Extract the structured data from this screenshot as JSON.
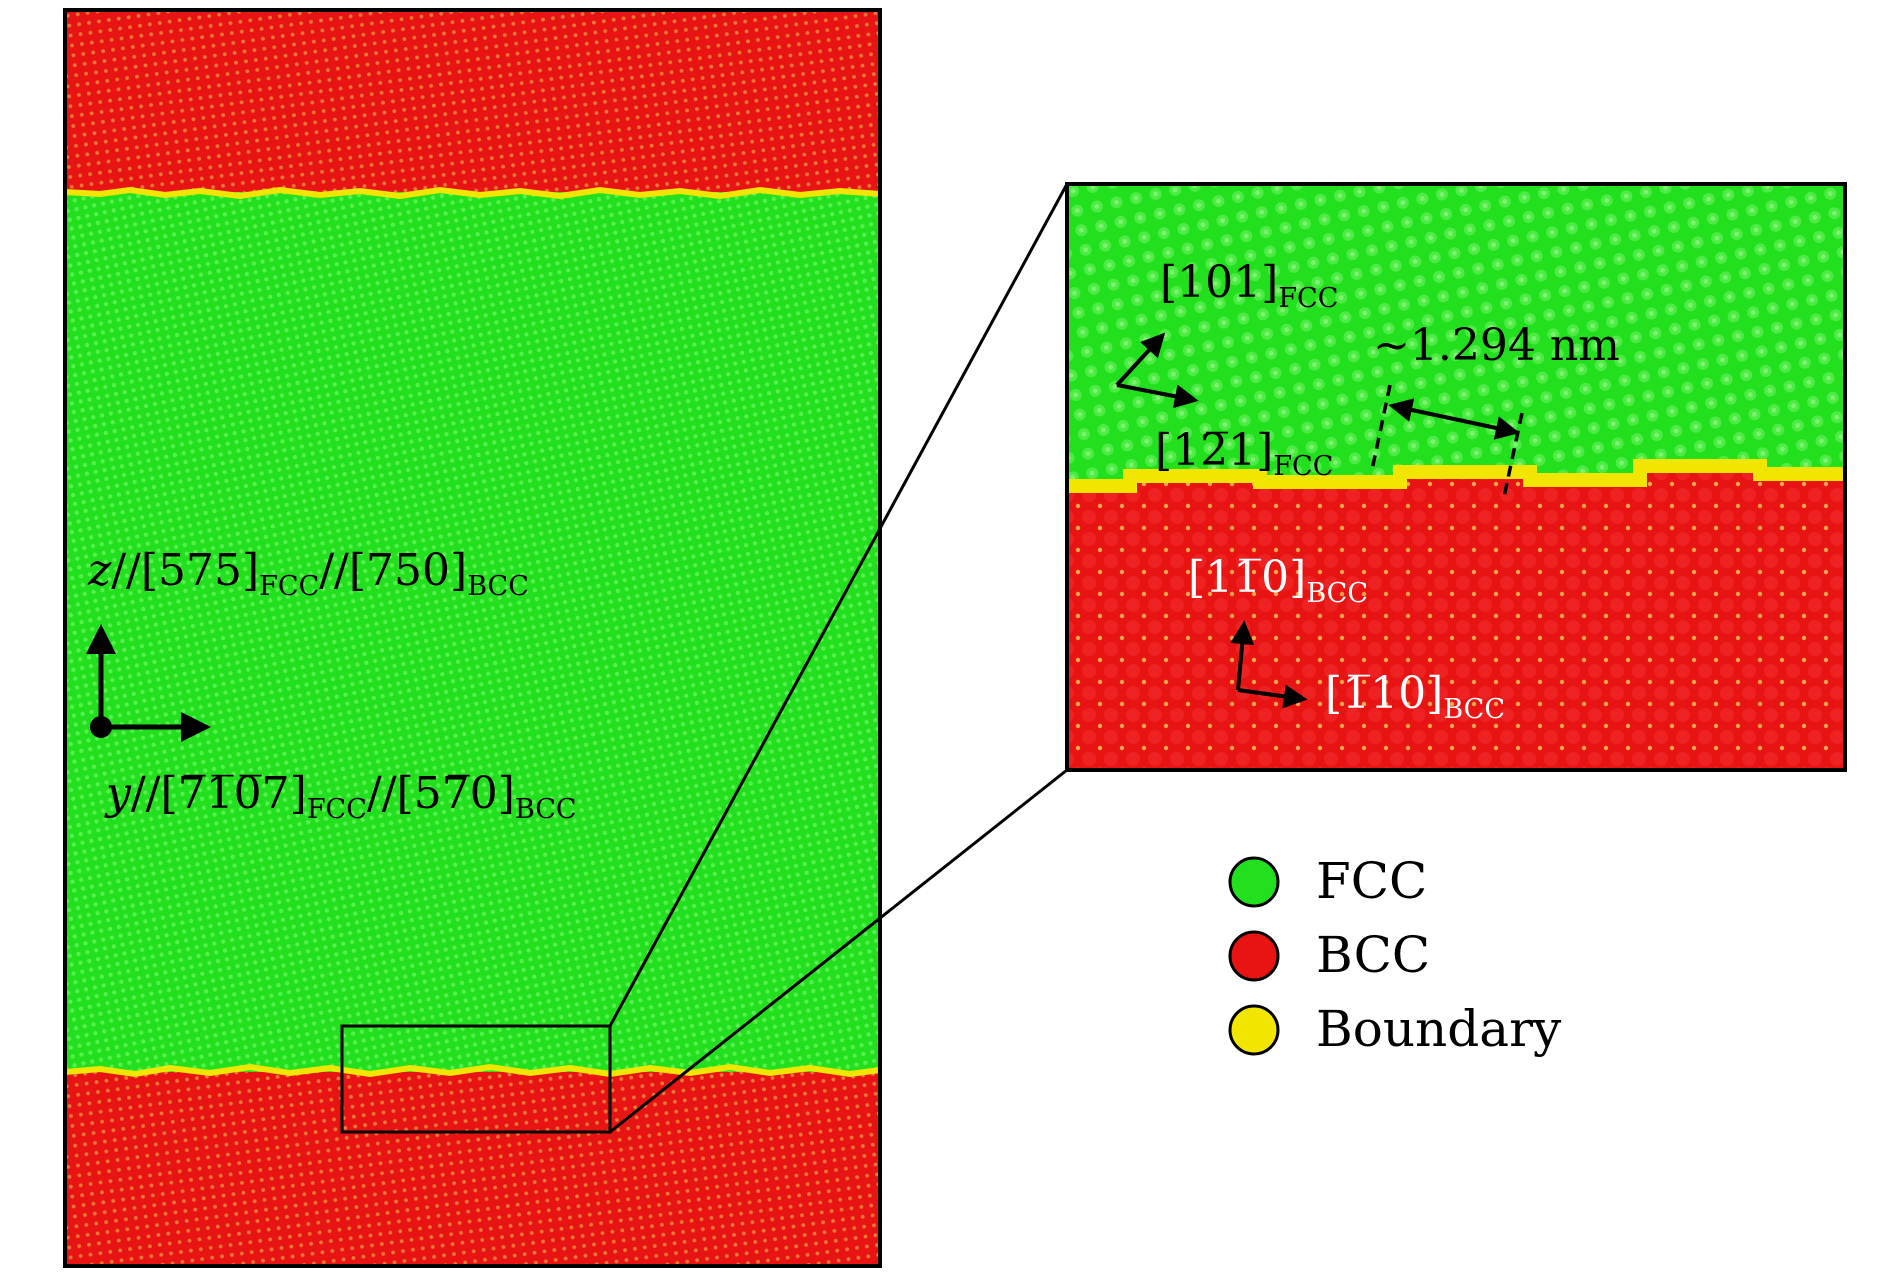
{
  "colors": {
    "fcc": "#22e01e",
    "bcc": "#e81414",
    "boundary": "#f2e600",
    "atom_fcc": "#56f04e",
    "atom_bcc": "#f28a3a",
    "outline": "#000000"
  },
  "main_panel": {
    "axis_z_var": "z",
    "axis_z_sep": "//",
    "axis_z_fcc_dir": "[575]",
    "axis_z_fcc_sub": "FCC",
    "axis_z_bcc_dir": "[750]",
    "axis_z_bcc_sub": "BCC",
    "axis_y_var": "y",
    "axis_y_sep": "//",
    "axis_y_fcc_dir": "[7̅1̅0̅7]",
    "axis_y_fcc_sub": "FCC",
    "axis_y_bcc_dir": "[57̅0]",
    "axis_y_bcc_sub": "BCC"
  },
  "inset": {
    "fcc_dir1": "[101]",
    "fcc_dir1_sub": "FCC",
    "fcc_dir2": "[12̅1]",
    "fcc_dir2_sub": "FCC",
    "bcc_dir1": "[11̅0]",
    "bcc_dir1_sub": "BCC",
    "bcc_dir2": "[1̅10]",
    "bcc_dir2_sub": "BCC",
    "spacing_label": "~1.294 nm"
  },
  "legend": [
    {
      "label": "FCC",
      "color": "#22e01e"
    },
    {
      "label": "BCC",
      "color": "#e81414"
    },
    {
      "label": "Boundary",
      "color": "#f2e600"
    }
  ]
}
